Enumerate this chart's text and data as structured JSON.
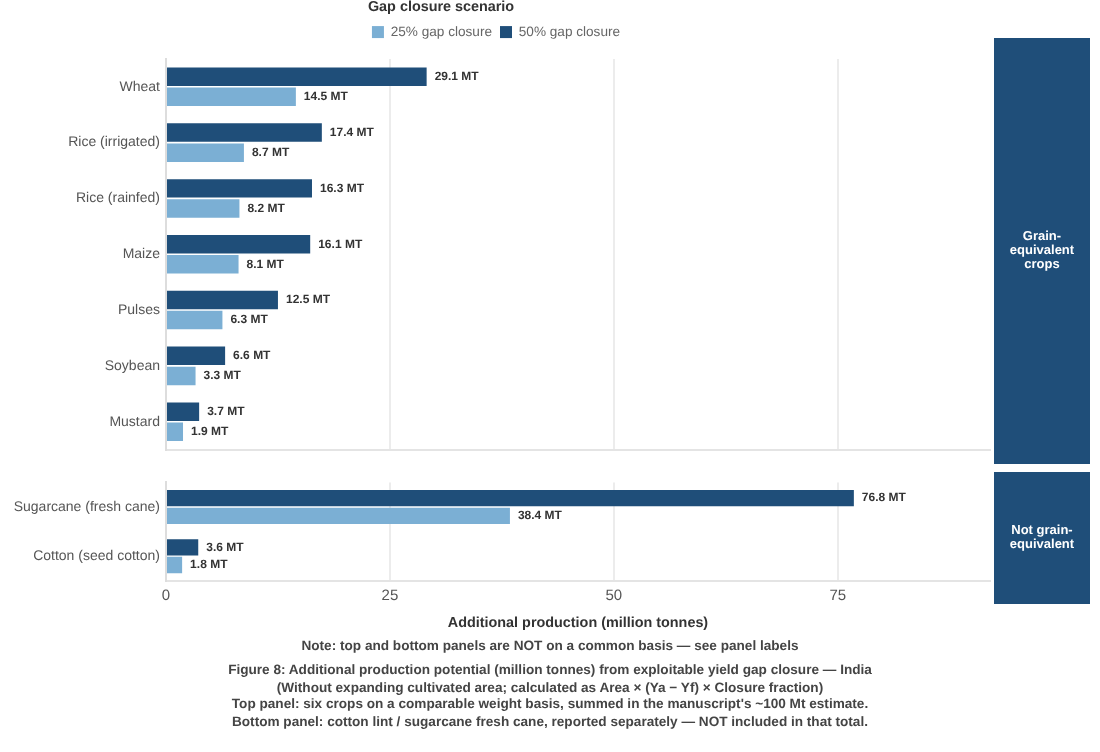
{
  "chart_data": [
    {
      "type": "bar",
      "orientation": "horizontal",
      "categories": [
        "Wheat",
        "Rice (irrigated)",
        "Rice (rainfed)",
        "Maize",
        "Pulses",
        "Soybean",
        "Mustard"
      ],
      "series": [
        {
          "name": "50% gap closure",
          "color": "#1f4e79",
          "values": [
            29.1,
            17.4,
            16.3,
            16.1,
            12.5,
            6.6,
            3.7
          ],
          "value_labels": [
            "29.1 MT",
            "17.4 MT",
            "16.3 MT",
            "16.1 MT",
            "12.5 MT",
            "6.6 MT",
            "3.7 MT"
          ]
        },
        {
          "name": "25% gap closure",
          "color": "#7bafd4",
          "values": [
            14.5,
            8.7,
            8.2,
            8.1,
            6.3,
            3.3,
            1.9
          ],
          "value_labels": [
            "14.5 MT",
            "8.7 MT",
            "8.2 MT",
            "8.1 MT",
            "6.3 MT",
            "3.3 MT",
            "1.9 MT"
          ]
        }
      ],
      "xlim": [
        0,
        92
      ],
      "xticks": [
        0,
        25,
        50,
        75
      ],
      "tick_labels": "y",
      "grid": "x",
      "legend": "top",
      "legend_title": "Gap closure scenario",
      "annotations": [
        "Grain-equivalent crops"
      ]
    },
    {
      "type": "bar",
      "orientation": "horizontal",
      "categories": [
        "Sugarcane (fresh cane)",
        "Cotton (seed cotton)"
      ],
      "series": [
        {
          "color": "#1f4e79",
          "values": [
            76.8,
            3.6
          ],
          "value_labels": [
            "76.8 MT",
            "3.6 MT"
          ]
        },
        {
          "color": "#7bafd4",
          "values": [
            38.4,
            1.8
          ],
          "value_labels": [
            "38.4 MT",
            "1.8 MT"
          ]
        }
      ],
      "xlim": [
        0,
        92
      ],
      "xticks": [
        0,
        25,
        50,
        75
      ],
      "grid": "x",
      "xlabel": "Additional production (million tonnes)",
      "annotations": [
        "Not grain-equivalent",
        "Note: top and bottom panels are NOT on a common basis — see panel labels",
        "Figure 8: Additional production potential (million tonnes) from exploitable yield gap closure — India",
        "(Without expanding cultivated area; calculated as Area × (Ya − Yf) × Closure fraction)",
        "Top panel: six crops on a comparable weight basis, summed in the manuscript's ~100 Mt estimate.",
        "Bottom panel: cotton lint / sugarcane fresh cane, reported separately — NOT included in that total."
      ]
    }
  ]
}
